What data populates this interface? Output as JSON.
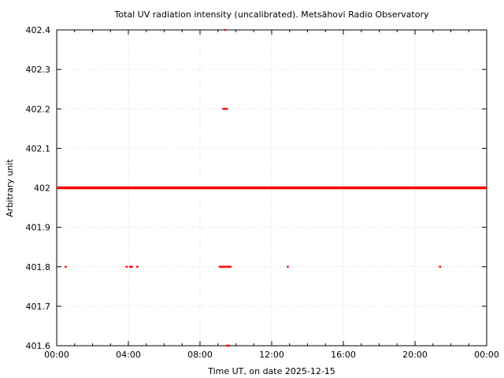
{
  "chart_data": {
    "type": "scatter",
    "title": "Total UV radiation intensity (uncalibrated). Metsähovi Radio Observatory",
    "xlabel": "Time UT, on date 2025-12-15",
    "ylabel": "Arbitrary unit",
    "xlim": [
      "00:00",
      "24:00"
    ],
    "ylim": [
      401.6,
      402.4
    ],
    "x_ticks": [
      "00:00",
      "04:00",
      "08:00",
      "12:00",
      "16:00",
      "20:00",
      "00:00"
    ],
    "y_ticks": [
      "401.6",
      "401.7",
      "401.8",
      "401.9",
      "402",
      "402.1",
      "402.2",
      "402.3",
      "402.4"
    ],
    "grid": true,
    "point_color": "#ff0000",
    "series": [
      {
        "note_continuous": "near-continuous run at 402 from 00:00 to 24:00",
        "baseline_value": 402,
        "baseline_from": "00:00",
        "baseline_to": "24:00",
        "points": [
          {
            "x": "00:30",
            "y": 401.8
          },
          {
            "x": "03:54",
            "y": 401.8
          },
          {
            "x": "04:06",
            "y": 401.8
          },
          {
            "x": "04:12",
            "y": 401.8
          },
          {
            "x": "04:30",
            "y": 401.8
          },
          {
            "x": "09:06",
            "y": 401.8
          },
          {
            "x": "09:12",
            "y": 401.8
          },
          {
            "x": "09:18",
            "y": 401.8
          },
          {
            "x": "09:24",
            "y": 401.8
          },
          {
            "x": "09:30",
            "y": 401.8
          },
          {
            "x": "09:36",
            "y": 401.8
          },
          {
            "x": "09:42",
            "y": 401.8
          },
          {
            "x": "12:54",
            "y": 401.8
          },
          {
            "x": "21:24",
            "y": 401.8
          },
          {
            "x": "09:18",
            "y": 402.2
          },
          {
            "x": "09:24",
            "y": 402.2
          },
          {
            "x": "09:30",
            "y": 402.2
          },
          {
            "x": "09:24",
            "y": 402.4
          },
          {
            "x": "09:30",
            "y": 401.6
          },
          {
            "x": "09:36",
            "y": 401.6
          }
        ]
      }
    ]
  }
}
